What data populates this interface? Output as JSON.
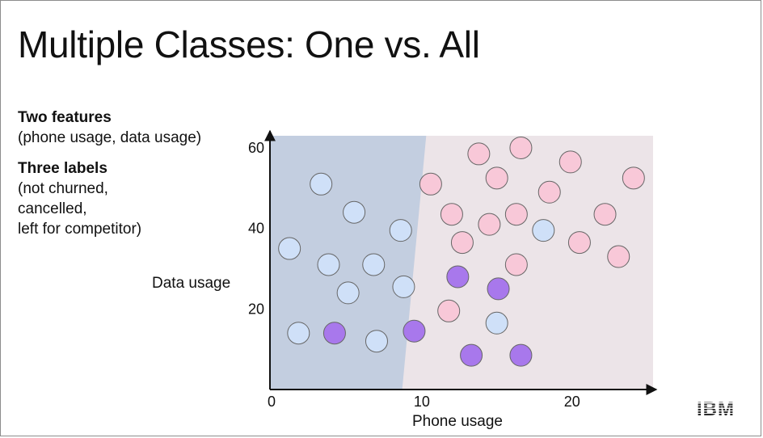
{
  "slide": {
    "title": "Multiple Classes: One vs. All",
    "features_heading": "Two features",
    "features_detail": "(phone usage, data usage)",
    "labels_heading": "Three labels",
    "labels_line1": "(not churned,",
    "labels_line2": "cancelled,",
    "labels_line3": "left for competitor)",
    "logo_text": "IBM"
  },
  "colors": {
    "not_churned": "#cfe0f8",
    "cancelled": "#f8c8d8",
    "left_for_competitor": "#a878ec",
    "region_left": "#c3cee0",
    "region_right": "#ece4e8",
    "marker_stroke": "#666666"
  },
  "chart_data": {
    "type": "scatter",
    "xlabel": "Phone usage",
    "ylabel": "Data usage",
    "xlim": [
      0,
      25.5
    ],
    "ylim": [
      0,
      63
    ],
    "xticks": [
      0,
      10,
      20
    ],
    "yticks": [
      20,
      40,
      60
    ],
    "decision_boundary": [
      [
        10.4,
        63
      ],
      [
        8.8,
        0
      ]
    ],
    "series": [
      {
        "class": "not_churned",
        "points": [
          [
            3.4,
            51
          ],
          [
            5.6,
            44
          ],
          [
            1.3,
            35
          ],
          [
            3.9,
            31
          ],
          [
            6.9,
            31
          ],
          [
            8.7,
            39.5
          ],
          [
            5.2,
            24
          ],
          [
            8.9,
            25.5
          ],
          [
            1.9,
            14
          ],
          [
            7.1,
            12
          ],
          [
            15.1,
            16.5
          ],
          [
            18.2,
            39.5
          ]
        ]
      },
      {
        "class": "cancelled",
        "points": [
          [
            10.7,
            51
          ],
          [
            12.1,
            43.5
          ],
          [
            12.8,
            36.5
          ],
          [
            13.9,
            58.5
          ],
          [
            15.1,
            52.5
          ],
          [
            14.6,
            41
          ],
          [
            16.7,
            60
          ],
          [
            16.4,
            43.5
          ],
          [
            16.4,
            31
          ],
          [
            18.6,
            49
          ],
          [
            20,
            56.5
          ],
          [
            20.6,
            36.5
          ],
          [
            22.3,
            43.5
          ],
          [
            24.2,
            52.5
          ],
          [
            23.2,
            33
          ],
          [
            11.9,
            19.5
          ]
        ]
      },
      {
        "class": "left_for_competitor",
        "points": [
          [
            4.3,
            14
          ],
          [
            9.6,
            14.5
          ],
          [
            12.5,
            28
          ],
          [
            15.2,
            25
          ],
          [
            13.4,
            8.5
          ],
          [
            16.7,
            8.5
          ]
        ]
      }
    ]
  }
}
